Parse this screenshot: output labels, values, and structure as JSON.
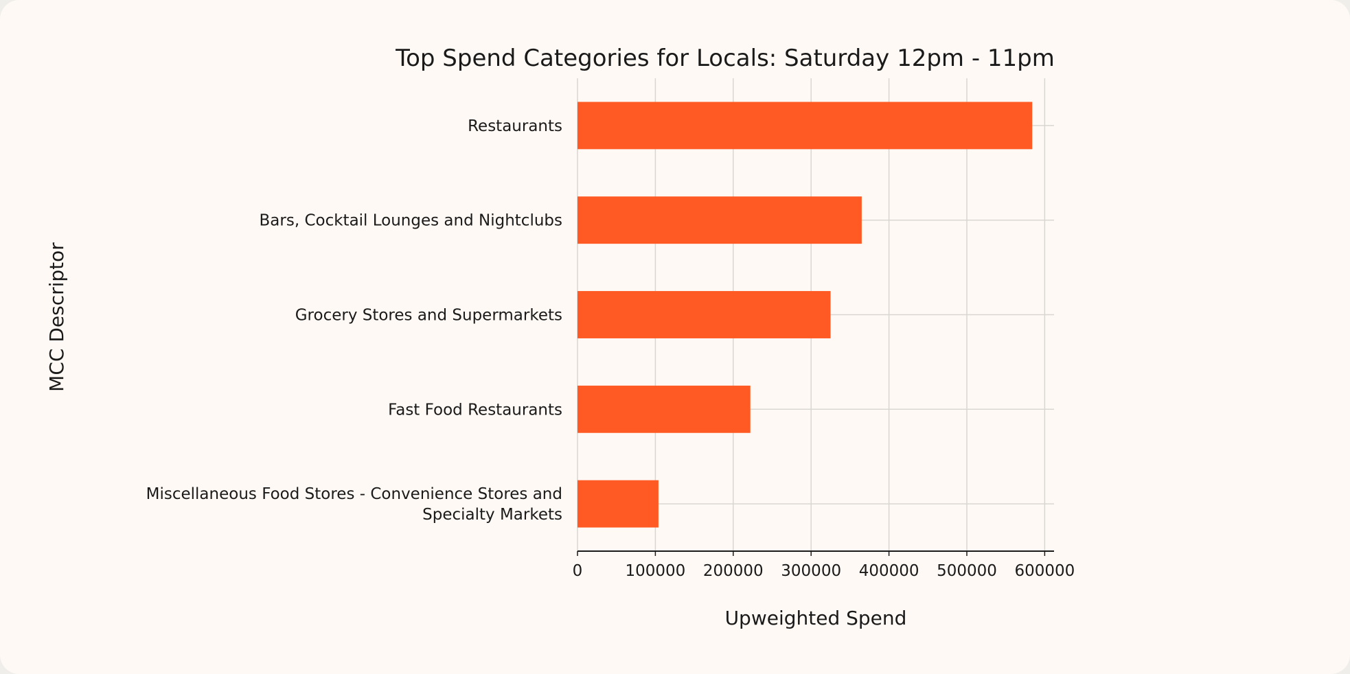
{
  "chart_data": {
    "type": "bar",
    "orientation": "horizontal",
    "title": "Top Spend Categories for Locals: Saturday 12pm - 11pm",
    "xlabel": "Upweighted Spend",
    "ylabel": "MCC Descriptor",
    "xlim": [
      0,
      612000
    ],
    "xticks": [
      0,
      100000,
      200000,
      300000,
      400000,
      500000,
      600000
    ],
    "xtick_labels": [
      "0",
      "100000",
      "200000",
      "300000",
      "400000",
      "500000",
      "600000"
    ],
    "grid": true,
    "categories": [
      [
        "Restaurants"
      ],
      [
        "Bars, Cocktail Lounges and Nightclubs"
      ],
      [
        "Grocery Stores and Supermarkets"
      ],
      [
        "Fast Food Restaurants"
      ],
      [
        "Miscellaneous Food Stores - Convenience Stores and",
        "Specialty Markets"
      ]
    ],
    "values": [
      584000,
      365000,
      325000,
      222000,
      104000
    ],
    "bar_color": "#ff5a24"
  }
}
